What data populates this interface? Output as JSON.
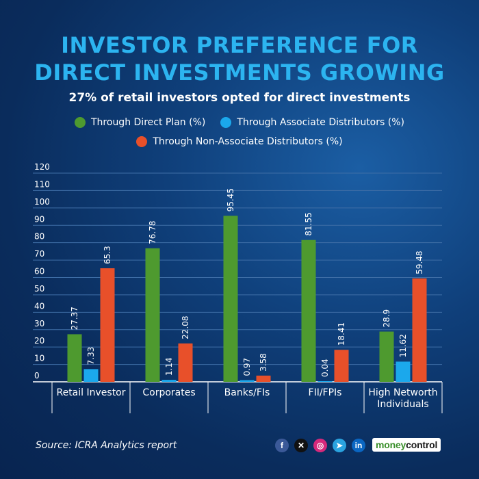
{
  "title_lines": [
    "INVESTOR PREFERENCE FOR",
    "DIRECT INVESTMENTS GROWING"
  ],
  "subtitle": "27% of retail investors opted for direct investments",
  "source": "Source: ICRA Analytics report",
  "brand": {
    "part1": "money",
    "part2": "control"
  },
  "social_icons": [
    {
      "name": "facebook-icon",
      "glyph": "f",
      "color": "#3b5998"
    },
    {
      "name": "x-icon",
      "glyph": "✕",
      "color": "#111111"
    },
    {
      "name": "instagram-icon",
      "glyph": "◎",
      "color": "#d6297b"
    },
    {
      "name": "telegram-icon",
      "glyph": "➤",
      "color": "#2aa3df"
    },
    {
      "name": "linkedin-icon",
      "glyph": "in",
      "color": "#0a66c2"
    }
  ],
  "chart_data": {
    "type": "bar",
    "title": "INVESTOR PREFERENCE FOR DIRECT INVESTMENTS GROWING",
    "subtitle": "27% of retail investors opted for direct investments",
    "categories": [
      [
        "Retail Investor"
      ],
      [
        "Corporates"
      ],
      [
        "Banks/FIs"
      ],
      [
        "FII/FPIs"
      ],
      [
        "High Networth",
        "Individuals"
      ]
    ],
    "series": [
      {
        "name": "Through Direct Plan (%)",
        "color": "#4e9a2f",
        "values": [
          27.37,
          76.78,
          95.45,
          81.55,
          28.9
        ]
      },
      {
        "name": "Through Associate Distributors (%)",
        "color": "#1ba8ec",
        "values": [
          7.33,
          1.14,
          0.97,
          0.04,
          11.62
        ]
      },
      {
        "name": "Through Non-Associate Distributors (%)",
        "color": "#e8502a",
        "values": [
          65.3,
          22.08,
          3.58,
          18.41,
          59.48
        ]
      }
    ],
    "yticks": [
      0,
      10,
      20,
      30,
      40,
      50,
      60,
      70,
      80,
      90,
      100,
      110,
      120
    ],
    "ylim": [
      0,
      120
    ],
    "xlabel": "",
    "ylabel": "",
    "grid": true,
    "legend": "top-center"
  }
}
